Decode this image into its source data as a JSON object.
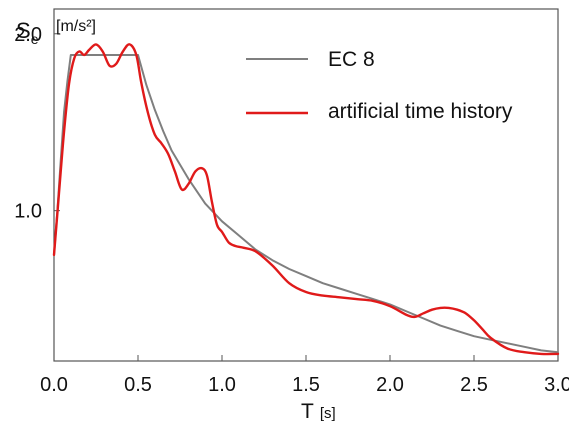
{
  "chart_data": {
    "type": "line",
    "xlabel": {
      "symbol": "T",
      "unit": "[s]"
    },
    "ylabel": {
      "symbol": "S",
      "subscript": "e",
      "unit": "[m/s²]"
    },
    "xlim": [
      0.0,
      3.0
    ],
    "ylim": [
      0.15,
      2.14
    ],
    "x_ticks": [
      "0.0",
      "0.5",
      "1.0",
      "1.5",
      "2.0",
      "2.5",
      "3.0"
    ],
    "y_ticks": [
      "1.0",
      "2.0"
    ],
    "grid": false,
    "legend_position": "top-right",
    "series": [
      {
        "name": "EC 8",
        "color": "#7f7f7f",
        "x": [
          0.0,
          0.02,
          0.04,
          0.06,
          0.08,
          0.1,
          0.5,
          0.55,
          0.6,
          0.65,
          0.7,
          0.8,
          0.9,
          1.0,
          1.1,
          1.2,
          1.3,
          1.4,
          1.5,
          1.6,
          1.7,
          1.8,
          1.9,
          2.0,
          2.1,
          2.2,
          2.3,
          2.4,
          2.5,
          2.6,
          2.7,
          2.8,
          2.9,
          3.0
        ],
        "y": [
          0.75,
          1.0,
          1.28,
          1.56,
          1.73,
          1.88,
          1.88,
          1.71,
          1.57,
          1.45,
          1.34,
          1.18,
          1.04,
          0.94,
          0.86,
          0.78,
          0.72,
          0.67,
          0.63,
          0.59,
          0.56,
          0.53,
          0.5,
          0.47,
          0.43,
          0.39,
          0.35,
          0.32,
          0.29,
          0.27,
          0.25,
          0.23,
          0.21,
          0.2
        ]
      },
      {
        "name": "artificial time history",
        "color": "#e01a1a",
        "x": [
          0.0,
          0.03,
          0.06,
          0.09,
          0.12,
          0.15,
          0.18,
          0.21,
          0.25,
          0.29,
          0.33,
          0.37,
          0.41,
          0.45,
          0.49,
          0.52,
          0.56,
          0.6,
          0.64,
          0.68,
          0.72,
          0.76,
          0.8,
          0.84,
          0.88,
          0.91,
          0.94,
          0.97,
          1.0,
          1.04,
          1.08,
          1.13,
          1.2,
          1.3,
          1.4,
          1.5,
          1.6,
          1.7,
          1.8,
          1.9,
          2.0,
          2.1,
          2.15,
          2.2,
          2.25,
          2.3,
          2.35,
          2.4,
          2.45,
          2.5,
          2.55,
          2.6,
          2.7,
          2.8,
          2.9,
          3.0
        ],
        "y": [
          0.75,
          1.1,
          1.45,
          1.72,
          1.86,
          1.9,
          1.88,
          1.91,
          1.94,
          1.9,
          1.82,
          1.83,
          1.9,
          1.94,
          1.88,
          1.72,
          1.55,
          1.43,
          1.38,
          1.32,
          1.22,
          1.12,
          1.15,
          1.22,
          1.24,
          1.2,
          1.05,
          0.92,
          0.88,
          0.82,
          0.8,
          0.79,
          0.77,
          0.69,
          0.59,
          0.54,
          0.52,
          0.51,
          0.5,
          0.49,
          0.46,
          0.41,
          0.4,
          0.42,
          0.44,
          0.45,
          0.45,
          0.44,
          0.42,
          0.38,
          0.33,
          0.28,
          0.22,
          0.2,
          0.19,
          0.19
        ]
      }
    ]
  }
}
